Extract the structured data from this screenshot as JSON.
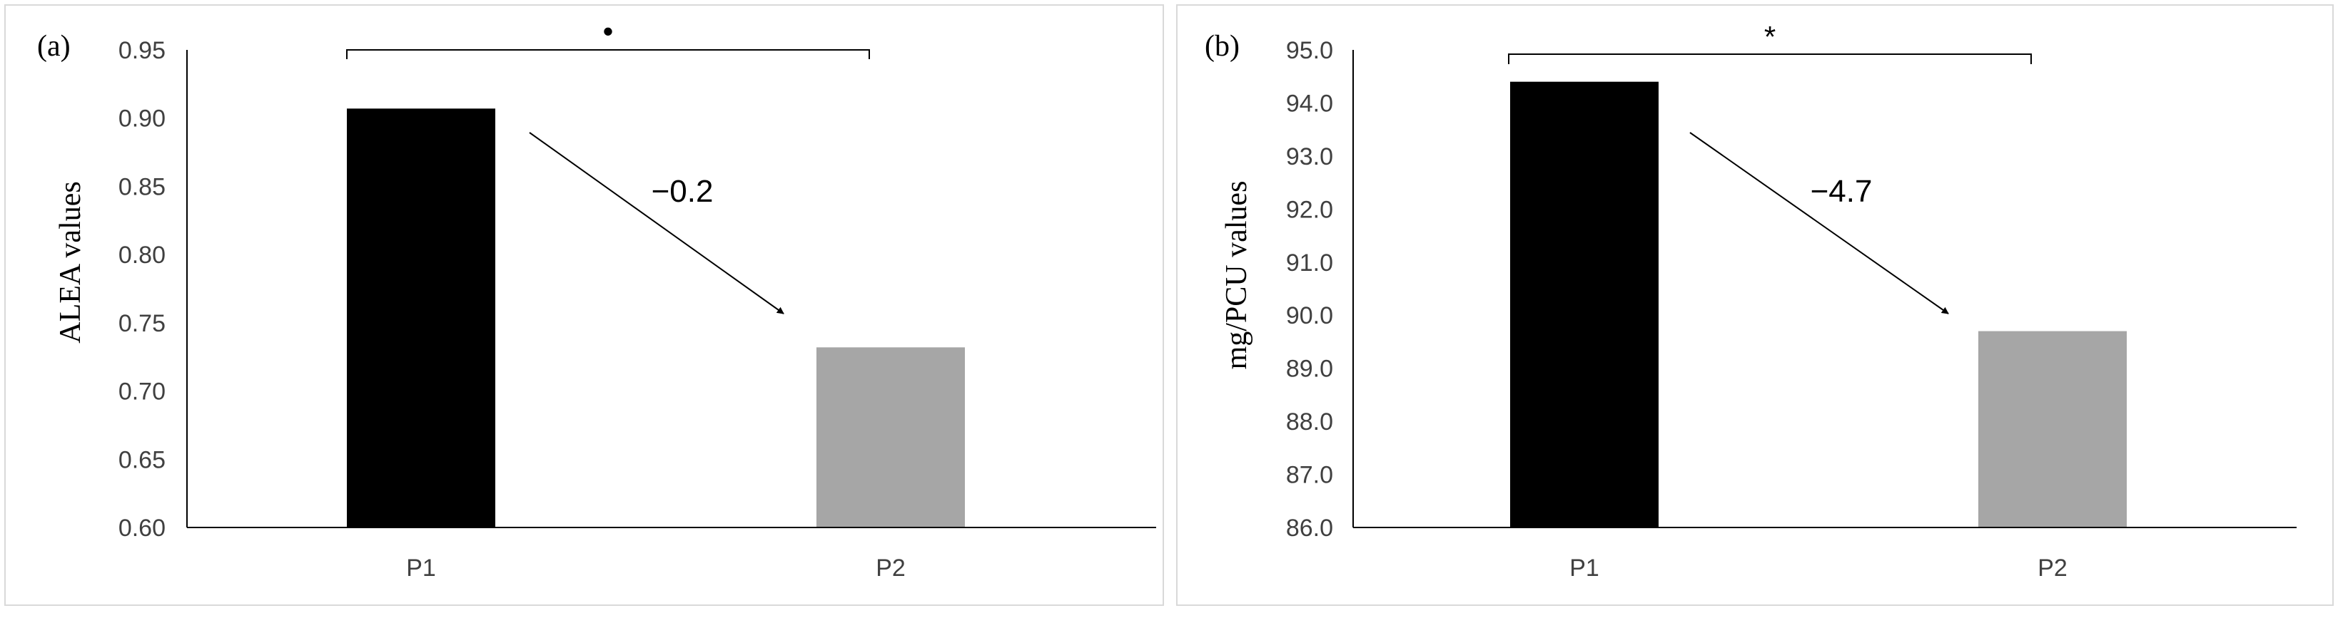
{
  "chart_data": [
    {
      "type": "bar",
      "panel_label": "(a)",
      "categories": [
        "P1",
        "P2"
      ],
      "values": [
        0.907,
        0.732
      ],
      "colors": [
        "#000000",
        "#a6a6a6"
      ],
      "ylabel": "ALEA  values",
      "ylim": [
        0.6,
        0.95
      ],
      "yticks": [
        "0.60",
        "0.65",
        "0.70",
        "0.75",
        "0.80",
        "0.85",
        "0.90",
        "0.95"
      ],
      "annotation": "−0.2",
      "significance": "•",
      "grid": false
    },
    {
      "type": "bar",
      "panel_label": "(b)",
      "categories": [
        "P1",
        "P2"
      ],
      "values": [
        94.4,
        89.7
      ],
      "colors": [
        "#000000",
        "#a6a6a6"
      ],
      "ylabel": "mg/PCU values",
      "ylim": [
        86.0,
        95.0
      ],
      "yticks": [
        "86.0",
        "87.0",
        "88.0",
        "89.0",
        "90.0",
        "91.0",
        "92.0",
        "93.0",
        "94.0",
        "95.0"
      ],
      "annotation": "−4.7",
      "significance": "*",
      "grid": false
    }
  ]
}
